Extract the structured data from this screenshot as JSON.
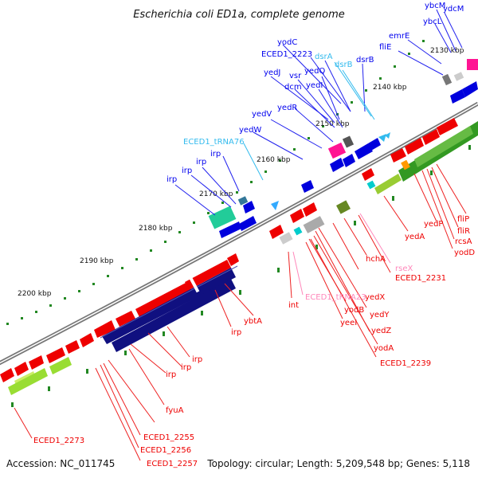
{
  "title": "Escherichia coli ED1a, complete genome",
  "footer": {
    "accession": "Accession: NC_011745",
    "summary": "Topology: circular; Length: 5,209,548 bp; Genes: 5,118"
  },
  "colors": {
    "forward": "#0000ee",
    "reverse": "#ee0000",
    "rna_forward": "#33bbee",
    "rna_reverse": "#ff88bb",
    "backbone": "#888888",
    "tick": "#228822"
  },
  "ticks": [
    {
      "label": "2130 kbp"
    },
    {
      "label": "2140 kbp"
    },
    {
      "label": "2150 kbp"
    },
    {
      "label": "2160 kbp"
    },
    {
      "label": "2170 kbp"
    },
    {
      "label": "2180 kbp"
    },
    {
      "label": "2190 kbp"
    },
    {
      "label": "2200 kbp"
    }
  ],
  "top_labels": [
    {
      "text": "ybcM",
      "kind": "forward"
    },
    {
      "text": "ydcM",
      "kind": "forward"
    },
    {
      "text": "ybcL",
      "kind": "forward"
    },
    {
      "text": "emrE",
      "kind": "forward"
    },
    {
      "text": "fliE",
      "kind": "forward"
    },
    {
      "text": "yodC",
      "kind": "forward"
    },
    {
      "text": "ECED1_2223",
      "kind": "forward"
    },
    {
      "text": "dsrA",
      "kind": "rna_forward"
    },
    {
      "text": "dsrB",
      "kind": "rna_forward"
    },
    {
      "text": "dsrB",
      "kind": "forward"
    },
    {
      "text": "yedJ",
      "kind": "forward"
    },
    {
      "text": "vsr",
      "kind": "forward"
    },
    {
      "text": "yedQ",
      "kind": "forward"
    },
    {
      "text": "dcm",
      "kind": "forward"
    },
    {
      "text": "yedI",
      "kind": "forward"
    },
    {
      "text": "yedR",
      "kind": "forward"
    },
    {
      "text": "yedV",
      "kind": "forward"
    },
    {
      "text": "yedW",
      "kind": "forward"
    },
    {
      "text": "ECED1_tRNA76",
      "kind": "rna_forward"
    },
    {
      "text": "irp",
      "kind": "forward"
    },
    {
      "text": "irp",
      "kind": "forward"
    },
    {
      "text": "irp",
      "kind": "forward"
    },
    {
      "text": "irp",
      "kind": "forward"
    }
  ],
  "bottom_labels": [
    {
      "text": "fliP",
      "kind": "reverse"
    },
    {
      "text": "fliR",
      "kind": "reverse"
    },
    {
      "text": "yedP",
      "kind": "reverse"
    },
    {
      "text": "rcsA",
      "kind": "reverse"
    },
    {
      "text": "yodD",
      "kind": "reverse"
    },
    {
      "text": "yedA",
      "kind": "reverse"
    },
    {
      "text": "rseX",
      "kind": "rna_reverse"
    },
    {
      "text": "ECED1_2231",
      "kind": "reverse"
    },
    {
      "text": "hchA",
      "kind": "reverse"
    },
    {
      "text": "yedX",
      "kind": "reverse"
    },
    {
      "text": "yedY",
      "kind": "reverse"
    },
    {
      "text": "yedZ",
      "kind": "reverse"
    },
    {
      "text": "yodA",
      "kind": "reverse"
    },
    {
      "text": "ECED1_2239",
      "kind": "reverse"
    },
    {
      "text": "yodB",
      "kind": "reverse"
    },
    {
      "text": "yeeI",
      "kind": "reverse"
    },
    {
      "text": "ECED1_tRNA23",
      "kind": "rna_reverse"
    },
    {
      "text": "int",
      "kind": "reverse"
    },
    {
      "text": "ybtA",
      "kind": "reverse"
    },
    {
      "text": "irp",
      "kind": "reverse"
    },
    {
      "text": "irp",
      "kind": "reverse"
    },
    {
      "text": "irp",
      "kind": "reverse"
    },
    {
      "text": "irp",
      "kind": "reverse"
    },
    {
      "text": "fyuA",
      "kind": "reverse"
    },
    {
      "text": "ECED1_2255",
      "kind": "reverse"
    },
    {
      "text": "ECED1_2256",
      "kind": "reverse"
    },
    {
      "text": "ECED1_2257",
      "kind": "reverse"
    },
    {
      "text": "ECED1_2273",
      "kind": "reverse"
    }
  ]
}
